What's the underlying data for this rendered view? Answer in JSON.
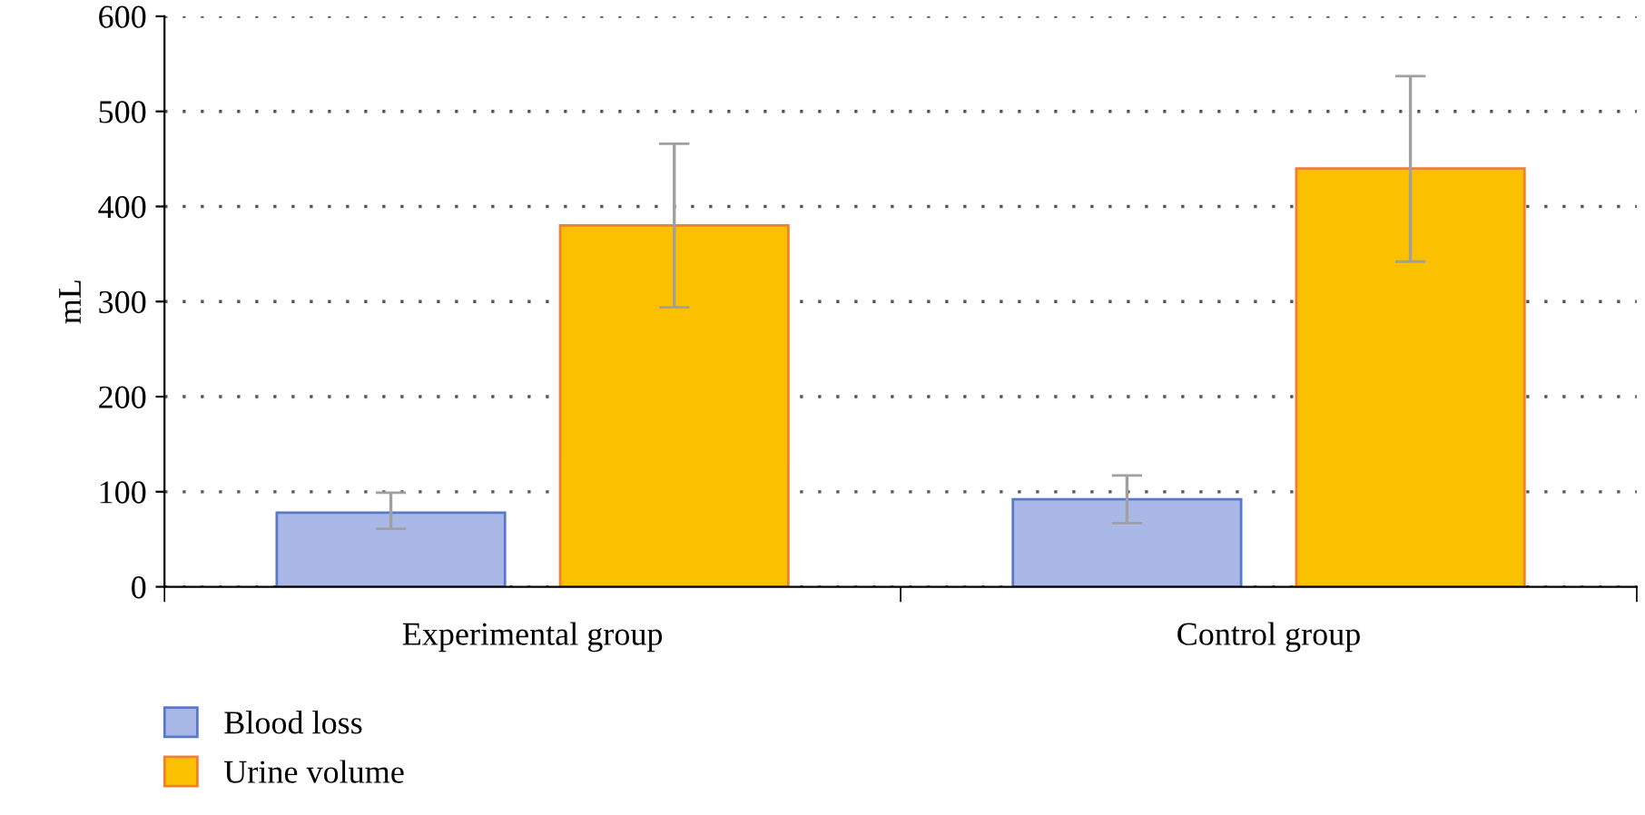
{
  "chart_data": {
    "type": "bar",
    "ylabel": "mL",
    "categories": [
      "Experimental group",
      "Control group"
    ],
    "series": [
      {
        "name": "Blood loss",
        "color": "#aab8e8",
        "values": [
          78,
          92
        ],
        "errors": [
          [
            61,
            99
          ],
          [
            67,
            117
          ]
        ]
      },
      {
        "name": "Urine volume",
        "color": "#fbc000",
        "values": [
          380,
          440
        ],
        "errors": [
          [
            294,
            466
          ],
          [
            342,
            537
          ]
        ]
      }
    ],
    "ylim": [
      0,
      600
    ],
    "yticks": [
      0,
      100,
      200,
      300,
      400,
      500,
      600
    ],
    "grid": "y",
    "legend": "bottom left"
  }
}
